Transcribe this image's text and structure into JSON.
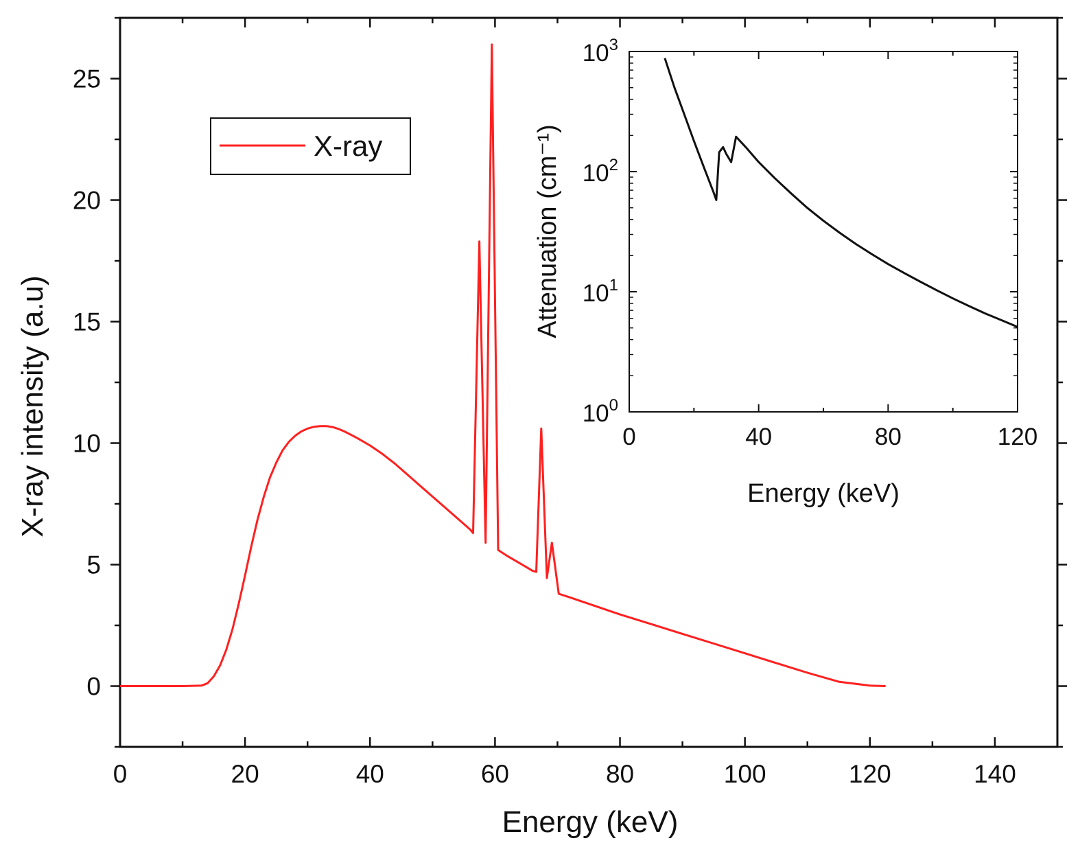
{
  "chart_data": [
    {
      "type": "line",
      "role": "main",
      "title": "",
      "xlabel": "Energy (keV)",
      "ylabel": "X-ray intensity (a.u)",
      "xlim": [
        0,
        150
      ],
      "ylim": [
        -2.5,
        27.5
      ],
      "xticks": [
        0,
        20,
        40,
        60,
        80,
        100,
        120,
        140
      ],
      "yticks": [
        0,
        5,
        10,
        15,
        20,
        25
      ],
      "grid": false,
      "legend": {
        "position": "top-left",
        "entries": [
          {
            "label": "X-ray",
            "color": "#ff2020"
          }
        ]
      },
      "series": [
        {
          "name": "X-ray",
          "color": "#ff2020",
          "x": [
            0,
            10,
            13,
            14,
            15,
            16,
            17,
            18,
            19,
            20,
            21,
            22,
            23,
            24,
            25,
            26,
            27,
            28,
            29,
            30,
            31,
            32,
            33,
            34,
            35,
            36,
            38,
            40,
            42,
            44,
            46,
            48,
            50,
            52,
            54,
            56,
            56.5,
            57.5,
            58.5,
            59.5,
            60.5,
            62,
            64,
            66,
            66.6,
            67.4,
            68.3,
            69.1,
            70.2,
            72,
            76,
            80,
            85,
            90,
            95,
            100,
            105,
            110,
            115,
            120,
            122.5
          ],
          "y": [
            0,
            0,
            0.02,
            0.12,
            0.4,
            0.85,
            1.5,
            2.35,
            3.4,
            4.55,
            5.75,
            6.85,
            7.8,
            8.6,
            9.2,
            9.7,
            10.05,
            10.3,
            10.48,
            10.6,
            10.67,
            10.7,
            10.7,
            10.66,
            10.58,
            10.47,
            10.2,
            9.9,
            9.55,
            9.15,
            8.7,
            8.25,
            7.8,
            7.35,
            6.9,
            6.45,
            6.3,
            18.3,
            5.9,
            26.4,
            5.6,
            5.35,
            5.05,
            4.75,
            4.7,
            10.6,
            4.45,
            5.9,
            3.8,
            3.65,
            3.3,
            2.95,
            2.55,
            2.15,
            1.75,
            1.35,
            0.95,
            0.55,
            0.18,
            0.02,
            0
          ]
        }
      ]
    },
    {
      "type": "line",
      "role": "inset",
      "title": "",
      "xlabel": "Energy (keV)",
      "ylabel": "Attenuation (cm⁻¹)",
      "yscale": "log",
      "xlim": [
        0,
        120
      ],
      "ylim": [
        1,
        1000
      ],
      "xticks": [
        0,
        40,
        80,
        120
      ],
      "yticks": [
        1,
        10,
        100,
        1000
      ],
      "ytick_labels": [
        {
          "base": "10",
          "exp": "0"
        },
        {
          "base": "10",
          "exp": "1"
        },
        {
          "base": "10",
          "exp": "2"
        },
        {
          "base": "10",
          "exp": "3"
        }
      ],
      "grid": false,
      "series": [
        {
          "name": "Attenuation",
          "color": "#111111",
          "x": [
            11,
            14,
            17,
            20,
            23,
            26,
            26.9,
            27.8,
            29,
            30,
            31.5,
            33,
            36,
            40,
            45,
            50,
            55,
            60,
            65,
            70,
            75,
            80,
            85,
            90,
            95,
            100,
            105,
            110,
            115,
            120
          ],
          "y": [
            880,
            500,
            300,
            180,
            110,
            68,
            58,
            145,
            160,
            140,
            120,
            195,
            160,
            120,
            88,
            66,
            50,
            39,
            31,
            25,
            20.5,
            17,
            14.3,
            12.1,
            10.3,
            8.8,
            7.6,
            6.6,
            5.8,
            5.1
          ]
        }
      ]
    }
  ]
}
